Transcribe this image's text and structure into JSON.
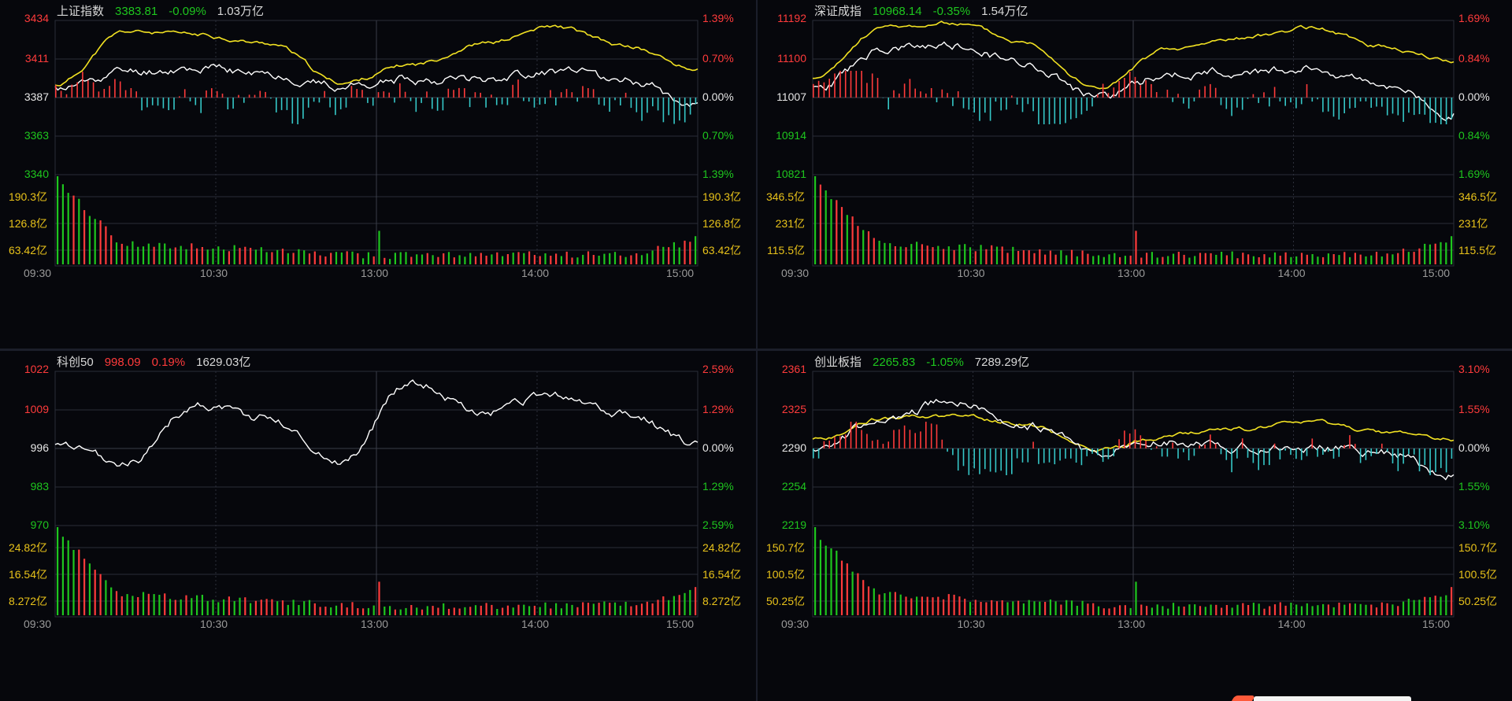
{
  "colors": {
    "up": "#ff3b3b",
    "down": "#1ec61e",
    "neutral": "#e6e6e6",
    "yellow_line": "#f2e222",
    "white_line": "#ffffff",
    "cyan_bar": "#35c7c7",
    "vol_label": "#e8c21a",
    "grid": "#2a2d38",
    "header_name": "#d8d8d8",
    "time_label": "#9a9a9a"
  },
  "panels": [
    {
      "name": "上证指数",
      "price": "3383.81",
      "change_pct": "-0.09%",
      "turnover": "1.03万亿",
      "direction": "down",
      "has_yellow": true,
      "y_left": [
        "3434",
        "3411",
        "3387",
        "3363",
        "3340"
      ],
      "y_right": [
        "1.39%",
        "0.70%",
        "0.00%",
        "0.70%",
        "1.39%"
      ],
      "vol_left": [
        "190.3亿",
        "126.8亿",
        "63.42亿"
      ],
      "vol_right": [
        "190.3亿",
        "126.8亿",
        "63.42亿"
      ],
      "times": [
        "09:30",
        "10:30",
        "13:00",
        "14:00",
        "15:00"
      ],
      "seed": 11
    },
    {
      "name": "深证成指",
      "price": "10968.14",
      "change_pct": "-0.35%",
      "turnover": "1.54万亿",
      "direction": "down",
      "has_yellow": true,
      "y_left": [
        "11192",
        "11100",
        "11007",
        "10914",
        "10821"
      ],
      "y_right": [
        "1.69%",
        "0.84%",
        "0.00%",
        "0.84%",
        "1.69%"
      ],
      "vol_left": [
        "346.5亿",
        "231亿",
        "115.5亿"
      ],
      "vol_right": [
        "346.5亿",
        "231亿",
        "115.5亿"
      ],
      "times": [
        "09:30",
        "10:30",
        "13:00",
        "14:00",
        "15:00"
      ],
      "seed": 23
    },
    {
      "name": "科创50",
      "price": "998.09",
      "change_pct": "0.19%",
      "turnover": "1629.03亿",
      "direction": "up",
      "has_yellow": false,
      "y_left": [
        "1022",
        "1009",
        "996",
        "983",
        "970"
      ],
      "y_right": [
        "2.59%",
        "1.29%",
        "0.00%",
        "1.29%",
        "2.59%"
      ],
      "vol_left": [
        "24.82亿",
        "16.54亿",
        "8.272亿"
      ],
      "vol_right": [
        "24.82亿",
        "16.54亿",
        "8.272亿"
      ],
      "times": [
        "09:30",
        "10:30",
        "13:00",
        "14:00",
        "15:00"
      ],
      "seed": 37
    },
    {
      "name": "创业板指",
      "price": "2265.83",
      "change_pct": "-1.05%",
      "turnover": "7289.29亿",
      "direction": "down",
      "has_yellow": true,
      "y_left": [
        "2361",
        "2325",
        "2290",
        "2254",
        "2219"
      ],
      "y_right": [
        "3.10%",
        "1.55%",
        "0.00%",
        "1.55%",
        "3.10%"
      ],
      "vol_left": [
        "150.7亿",
        "100.5亿",
        "50.25亿"
      ],
      "vol_right": [
        "150.7亿",
        "100.5亿",
        "50.25亿"
      ],
      "times": [
        "09:30",
        "10:30",
        "13:00",
        "14:00",
        "15:00"
      ],
      "seed": 53
    }
  ],
  "chart_data": [
    {
      "type": "line",
      "title": "上证指数",
      "x": [
        "09:30",
        "10:00",
        "10:30",
        "11:00",
        "11:30",
        "13:00",
        "13:30",
        "14:00",
        "14:30",
        "15:00"
      ],
      "series": [
        {
          "name": "white",
          "values": [
            3392,
            3403,
            3405,
            3401,
            3394,
            3398,
            3399,
            3403,
            3398,
            3383.81
          ]
        },
        {
          "name": "yellow",
          "values": [
            3395,
            3427,
            3425,
            3420,
            3396,
            3407,
            3420,
            3430,
            3418,
            3404
          ]
        }
      ],
      "ylim": [
        3340,
        3434
      ]
    },
    {
      "type": "line",
      "title": "深证成指",
      "x": [
        "09:30",
        "10:00",
        "10:30",
        "11:00",
        "11:30",
        "13:00",
        "13:30",
        "14:00",
        "14:30",
        "15:00"
      ],
      "series": [
        {
          "name": "white",
          "values": [
            11025,
            11120,
            11130,
            11090,
            11010,
            11060,
            11070,
            11075,
            11040,
            10968.14
          ]
        },
        {
          "name": "yellow",
          "values": [
            11050,
            11175,
            11185,
            11140,
            11030,
            11120,
            11150,
            11175,
            11130,
            11095
          ]
        }
      ],
      "ylim": [
        10821,
        11192
      ]
    },
    {
      "type": "line",
      "title": "科创50",
      "x": [
        "09:30",
        "10:00",
        "10:30",
        "11:00",
        "11:30",
        "13:00",
        "13:30",
        "14:00",
        "14:30",
        "15:00"
      ],
      "series": [
        {
          "name": "white",
          "values": [
            997,
            991,
            1011,
            1006,
            992,
            1019,
            1008,
            1014,
            1007,
            998.09
          ]
        }
      ],
      "ylim": [
        970,
        1022
      ]
    },
    {
      "type": "line",
      "title": "创业板指",
      "x": [
        "09:30",
        "10:00",
        "10:30",
        "11:00",
        "11:30",
        "13:00",
        "13:30",
        "14:00",
        "14:30",
        "15:00"
      ],
      "series": [
        {
          "name": "white",
          "values": [
            2292,
            2315,
            2335,
            2311,
            2287,
            2295,
            2292,
            2291,
            2287,
            2265.83
          ]
        },
        {
          "name": "yellow",
          "values": [
            2298,
            2318,
            2320,
            2312,
            2289,
            2302,
            2308,
            2313,
            2305,
            2299
          ]
        }
      ],
      "ylim": [
        2219,
        2361
      ]
    }
  ]
}
